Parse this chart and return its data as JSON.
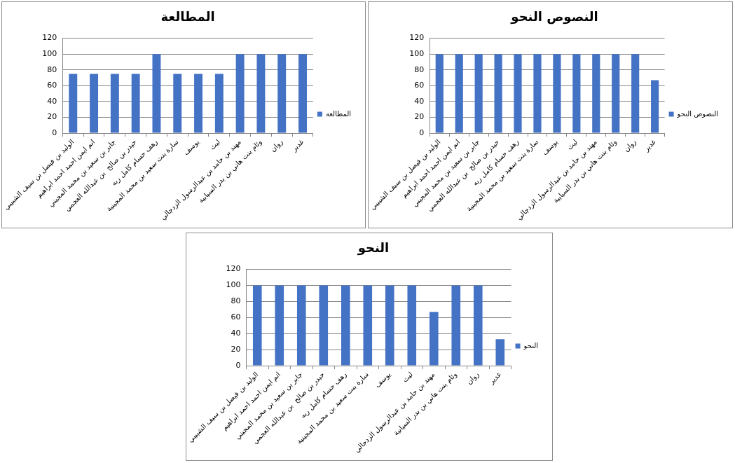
{
  "chart_data": [
    {
      "type": "bar",
      "title": "المطالعة",
      "categories": [
        "الوليد بن فيصل بن سيف الشبيبي",
        "انم ايمن احمد احمد ابراهيم",
        "جابر بن سعيد بن محمد المجيني",
        "حيدر بن صالح  بن عبدالله العجمي",
        "رهف حسام كامل ربه",
        "سارة بنت سعيد بن محمد المجينية",
        "يوسف",
        "ليث",
        "مهند بن حامد بن عبدالرسول الزدجالي",
        "وئام بنت هاني بن بدر السيابية",
        "روان",
        "غدير"
      ],
      "series": [
        {
          "name": "المطالعة",
          "color": "#4472c4",
          "values": [
            75,
            75,
            75,
            75,
            100,
            75,
            75,
            75,
            100,
            100,
            100,
            100
          ]
        }
      ],
      "ylim": [
        0,
        120
      ],
      "yticks": [
        0,
        20,
        40,
        60,
        80,
        100,
        120
      ],
      "grid": "y",
      "legend": "right"
    },
    {
      "type": "bar",
      "title": "النصوص النحو",
      "categories": [
        "الوليد بن فيصل بن سيف الشبيبي",
        "انم ايمن احمد احمد ابراهيم",
        "جابر بن سعيد بن محمد المجيني",
        "حيدر بن صالح  بن عبدالله العجمي",
        "رهف حسام كامل ربه",
        "سارة بنت سعيد بن محمد المجينية",
        "يوسف",
        "ليث",
        "مهند بن حامد بن عبدالرسول الزدجالي",
        "وئام بنت هاني بن بدر السيابية",
        "روان",
        "غدير"
      ],
      "series": [
        {
          "name": "النصوص النحو",
          "color": "#4472c4",
          "values": [
            100,
            100,
            100,
            100,
            100,
            100,
            100,
            100,
            100,
            100,
            100,
            67
          ]
        }
      ],
      "ylim": [
        0,
        120
      ],
      "yticks": [
        0,
        20,
        40,
        60,
        80,
        100,
        120
      ],
      "grid": "y",
      "legend": "right"
    },
    {
      "type": "bar",
      "title": "النحو",
      "categories": [
        "الوليد بن فيصل بن سيف الشبيبي",
        "انم ايمن احمد احمد ابراهيم",
        "جابر بن سعيد بن محمد المجيني",
        "حيدر بن صالح  بن عبدالله العجمي",
        "رهف حسام كامل ربه",
        "سارة بنت سعيد بن محمد المجينية",
        "يوسف",
        "ليث",
        "مهند بن حامد بن عبدالرسول الزدجالي",
        "وئام بنت هاني بن بدر السيابية",
        "روان",
        "غدير"
      ],
      "series": [
        {
          "name": "النحو",
          "color": "#4472c4",
          "values": [
            100,
            100,
            100,
            100,
            100,
            100,
            100,
            100,
            67,
            100,
            100,
            33
          ]
        }
      ],
      "ylim": [
        0,
        120
      ],
      "yticks": [
        0,
        20,
        40,
        60,
        80,
        100,
        120
      ],
      "grid": "y",
      "legend": "right"
    }
  ]
}
